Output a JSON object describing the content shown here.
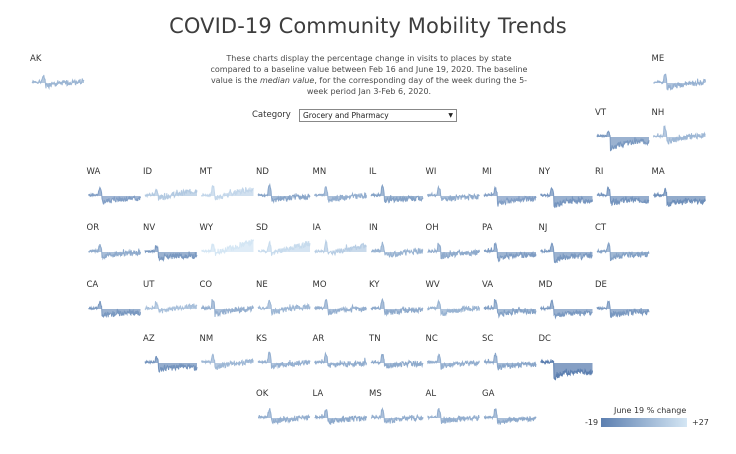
{
  "title": "COVID-19 Community Mobility Trends",
  "subtitle": {
    "part1": "These charts display the percentage change in visits to places by state compared to a baseline value between Feb 16 and June 19, 2020. The baseline value is the ",
    "emph": "median value",
    "part2": ", for the corresponding day of the week during the 5-week period Jan 3-Feb 6, 2020."
  },
  "category": {
    "label": "Category",
    "selected": "Grocery and Pharmacy"
  },
  "legend": {
    "title": "June 19 % change",
    "min": "-19",
    "max": "+27",
    "color_low": "#5c7fb0",
    "color_high": "#d4e6f4"
  },
  "chart_data": {
    "type": "area",
    "description_scope": "small-multiple sparkline per state, tile map layout",
    "x_range": [
      "Feb 16, 2020",
      "June 19, 2020"
    ],
    "ylim": [
      -60,
      60
    ],
    "color_scale": {
      "min": -19,
      "max": 27,
      "low": "#5c7fb0",
      "high": "#d4e6f4"
    },
    "states": [
      {
        "abbr": "AK",
        "row": 0,
        "col": 0,
        "june19": 5,
        "dip": 8,
        "spike": 18,
        "seed": 1
      },
      {
        "abbr": "ME",
        "row": 0,
        "col": 11,
        "june19": 3,
        "dip": 12,
        "spike": 22,
        "seed": 2
      },
      {
        "abbr": "VT",
        "row": 1,
        "col": 10,
        "june19": -8,
        "dip": 30,
        "spike": 14,
        "seed": 3
      },
      {
        "abbr": "NH",
        "row": 1,
        "col": 11,
        "june19": 6,
        "dip": 12,
        "spike": 24,
        "seed": 4
      },
      {
        "abbr": "WA",
        "row": 2,
        "col": 1,
        "june19": -5,
        "dip": 16,
        "spike": 18,
        "seed": 5
      },
      {
        "abbr": "ID",
        "row": 2,
        "col": 2,
        "june19": 14,
        "dip": 5,
        "spike": 16,
        "seed": 6
      },
      {
        "abbr": "MT",
        "row": 2,
        "col": 3,
        "june19": 20,
        "dip": 6,
        "spike": 26,
        "seed": 7
      },
      {
        "abbr": "ND",
        "row": 2,
        "col": 4,
        "june19": -2,
        "dip": 12,
        "spike": 26,
        "seed": 8
      },
      {
        "abbr": "MN",
        "row": 2,
        "col": 5,
        "june19": 2,
        "dip": 11,
        "spike": 22,
        "seed": 9
      },
      {
        "abbr": "IL",
        "row": 2,
        "col": 6,
        "june19": -4,
        "dip": 14,
        "spike": 24,
        "seed": 10
      },
      {
        "abbr": "WI",
        "row": 2,
        "col": 7,
        "june19": 0,
        "dip": 11,
        "spike": 22,
        "seed": 11
      },
      {
        "abbr": "MI",
        "row": 2,
        "col": 8,
        "june19": -5,
        "dip": 20,
        "spike": 20,
        "seed": 12
      },
      {
        "abbr": "NY",
        "row": 2,
        "col": 9,
        "june19": -9,
        "dip": 24,
        "spike": 18,
        "seed": 13
      },
      {
        "abbr": "RI",
        "row": 2,
        "col": 10,
        "june19": -10,
        "dip": 18,
        "spike": 20,
        "seed": 14
      },
      {
        "abbr": "MA",
        "row": 2,
        "col": 11,
        "june19": -12,
        "dip": 22,
        "spike": 16,
        "seed": 15
      },
      {
        "abbr": "OR",
        "row": 3,
        "col": 1,
        "june19": 0,
        "dip": 12,
        "spike": 16,
        "seed": 16
      },
      {
        "abbr": "NV",
        "row": 3,
        "col": 2,
        "june19": -8,
        "dip": 18,
        "spike": 16,
        "seed": 17
      },
      {
        "abbr": "WY",
        "row": 3,
        "col": 3,
        "june19": 27,
        "dip": 4,
        "spike": 20,
        "seed": 18
      },
      {
        "abbr": "SD",
        "row": 3,
        "col": 4,
        "june19": 22,
        "dip": 4,
        "spike": 24,
        "seed": 19
      },
      {
        "abbr": "IA",
        "row": 3,
        "col": 5,
        "june19": 16,
        "dip": 5,
        "spike": 26,
        "seed": 20
      },
      {
        "abbr": "IN",
        "row": 3,
        "col": 6,
        "june19": 4,
        "dip": 10,
        "spike": 22,
        "seed": 21
      },
      {
        "abbr": "OH",
        "row": 3,
        "col": 7,
        "june19": 0,
        "dip": 12,
        "spike": 22,
        "seed": 22
      },
      {
        "abbr": "PA",
        "row": 3,
        "col": 8,
        "june19": -6,
        "dip": 18,
        "spike": 20,
        "seed": 23
      },
      {
        "abbr": "NJ",
        "row": 3,
        "col": 9,
        "june19": -8,
        "dip": 22,
        "spike": 22,
        "seed": 24
      },
      {
        "abbr": "CT",
        "row": 3,
        "col": 10,
        "june19": -4,
        "dip": 16,
        "spike": 20,
        "seed": 25
      },
      {
        "abbr": "CA",
        "row": 4,
        "col": 1,
        "june19": -8,
        "dip": 18,
        "spike": 16,
        "seed": 26
      },
      {
        "abbr": "UT",
        "row": 4,
        "col": 2,
        "june19": 10,
        "dip": 8,
        "spike": 16,
        "seed": 27
      },
      {
        "abbr": "CO",
        "row": 4,
        "col": 3,
        "june19": 2,
        "dip": 12,
        "spike": 22,
        "seed": 28
      },
      {
        "abbr": "NE",
        "row": 4,
        "col": 4,
        "june19": 6,
        "dip": 8,
        "spike": 22,
        "seed": 29
      },
      {
        "abbr": "MO",
        "row": 4,
        "col": 5,
        "june19": 2,
        "dip": 10,
        "spike": 22,
        "seed": 30
      },
      {
        "abbr": "KY",
        "row": 4,
        "col": 6,
        "june19": 0,
        "dip": 12,
        "spike": 22,
        "seed": 31
      },
      {
        "abbr": "WV",
        "row": 4,
        "col": 7,
        "june19": 4,
        "dip": 12,
        "spike": 20,
        "seed": 32
      },
      {
        "abbr": "VA",
        "row": 4,
        "col": 8,
        "june19": -4,
        "dip": 14,
        "spike": 20,
        "seed": 33
      },
      {
        "abbr": "MD",
        "row": 4,
        "col": 9,
        "june19": -8,
        "dip": 18,
        "spike": 20,
        "seed": 34
      },
      {
        "abbr": "DE",
        "row": 4,
        "col": 10,
        "june19": -8,
        "dip": 16,
        "spike": 18,
        "seed": 35
      },
      {
        "abbr": "AZ",
        "row": 5,
        "col": 2,
        "june19": -10,
        "dip": 18,
        "spike": 14,
        "seed": 36
      },
      {
        "abbr": "NM",
        "row": 5,
        "col": 3,
        "june19": 6,
        "dip": 12,
        "spike": 18,
        "seed": 37
      },
      {
        "abbr": "KS",
        "row": 5,
        "col": 4,
        "june19": 3,
        "dip": 10,
        "spike": 26,
        "seed": 38
      },
      {
        "abbr": "AR",
        "row": 5,
        "col": 5,
        "june19": 1,
        "dip": 10,
        "spike": 22,
        "seed": 39
      },
      {
        "abbr": "TN",
        "row": 5,
        "col": 6,
        "june19": 0,
        "dip": 10,
        "spike": 22,
        "seed": 40
      },
      {
        "abbr": "NC",
        "row": 5,
        "col": 7,
        "june19": 2,
        "dip": 10,
        "spike": 20,
        "seed": 41
      },
      {
        "abbr": "SC",
        "row": 5,
        "col": 8,
        "june19": -2,
        "dip": 12,
        "spike": 22,
        "seed": 42
      },
      {
        "abbr": "DC",
        "row": 5,
        "col": 9,
        "june19": -19,
        "dip": 38,
        "spike": 6,
        "seed": 43
      },
      {
        "abbr": "OK",
        "row": 6,
        "col": 4,
        "june19": 2,
        "dip": 10,
        "spike": 22,
        "seed": 44
      },
      {
        "abbr": "LA",
        "row": 6,
        "col": 5,
        "june19": 0,
        "dip": 10,
        "spike": 20,
        "seed": 45
      },
      {
        "abbr": "MS",
        "row": 6,
        "col": 6,
        "june19": 2,
        "dip": 10,
        "spike": 22,
        "seed": 46
      },
      {
        "abbr": "AL",
        "row": 6,
        "col": 7,
        "june19": 2,
        "dip": 10,
        "spike": 22,
        "seed": 47
      },
      {
        "abbr": "GA",
        "row": 6,
        "col": 8,
        "june19": 0,
        "dip": 12,
        "spike": 22,
        "seed": 48
      }
    ]
  }
}
